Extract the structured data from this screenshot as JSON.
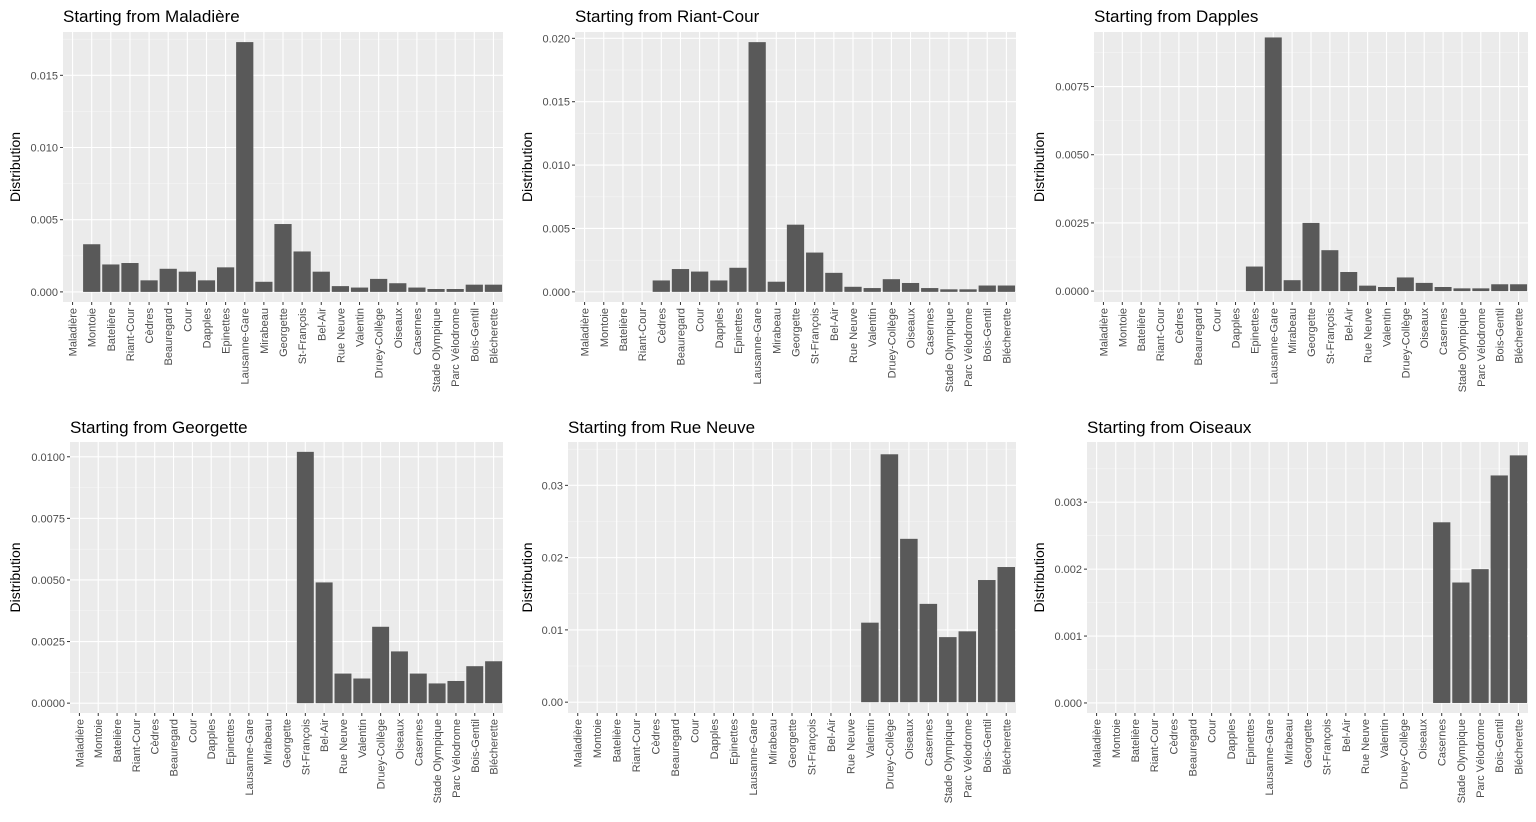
{
  "chart_data": [
    {
      "type": "bar",
      "title": "Starting from Maladière",
      "xlabel": "",
      "ylabel": "Distribution",
      "ylim": [
        -0.0007,
        0.018
      ],
      "yticks": [
        "0.000",
        "0.005",
        "0.010",
        "0.015"
      ],
      "categories": [
        "Maladière",
        "Montoie",
        "Batelière",
        "Riant-Cour",
        "Cèdres",
        "Beauregard",
        "Cour",
        "Dapples",
        "Epinettes",
        "Lausanne-Gare",
        "Mirabeau",
        "Georgette",
        "St-François",
        "Bel-Air",
        "Rue Neuve",
        "Valentin",
        "Druey-Collège",
        "Oiseaux",
        "Casernes",
        "Stade Olympique",
        "Parc Vélodrome",
        "Bois-Gentil",
        "Blécherette"
      ],
      "values": [
        0,
        0.0033,
        0.0019,
        0.002,
        0.0008,
        0.0016,
        0.0014,
        0.0008,
        0.0017,
        0.0173,
        0.0007,
        0.0047,
        0.0028,
        0.0014,
        0.0004,
        0.0003,
        0.0009,
        0.0006,
        0.0003,
        0.0002,
        0.0002,
        0.0005,
        0.0005
      ]
    },
    {
      "type": "bar",
      "title": "Starting from Riant-Cour",
      "xlabel": "",
      "ylabel": "Distribution",
      "ylim": [
        -0.0008,
        0.0205
      ],
      "yticks": [
        "0.000",
        "0.005",
        "0.010",
        "0.015",
        "0.020"
      ],
      "categories": [
        "Maladière",
        "Montoie",
        "Batelière",
        "Riant-Cour",
        "Cèdres",
        "Beauregard",
        "Cour",
        "Dapples",
        "Epinettes",
        "Lausanne-Gare",
        "Mirabeau",
        "Georgette",
        "St-François",
        "Bel-Air",
        "Rue Neuve",
        "Valentin",
        "Druey-Collège",
        "Oiseaux",
        "Casernes",
        "Stade Olympique",
        "Parc Vélodrome",
        "Bois-Gentil",
        "Blécherette"
      ],
      "values": [
        0,
        0,
        0,
        0,
        0.0009,
        0.0018,
        0.0016,
        0.0009,
        0.0019,
        0.0197,
        0.0008,
        0.0053,
        0.0031,
        0.0015,
        0.0004,
        0.0003,
        0.001,
        0.0007,
        0.0003,
        0.0002,
        0.0002,
        0.0005,
        0.0005
      ]
    },
    {
      "type": "bar",
      "title": "Starting from Dapples",
      "xlabel": "",
      "ylabel": "Distribution",
      "ylim": [
        -0.0004,
        0.0095
      ],
      "yticks": [
        "0.0000",
        "0.0025",
        "0.0050",
        "0.0075"
      ],
      "categories": [
        "Maladière",
        "Montoie",
        "Batelière",
        "Riant-Cour",
        "Cèdres",
        "Beauregard",
        "Cour",
        "Dapples",
        "Epinettes",
        "Lausanne-Gare",
        "Mirabeau",
        "Georgette",
        "St-François",
        "Bel-Air",
        "Rue Neuve",
        "Valentin",
        "Druey-Collège",
        "Oiseaux",
        "Casernes",
        "Stade Olympique",
        "Parc Vélodrome",
        "Bois-Gentil",
        "Blécherette"
      ],
      "values": [
        0,
        0,
        0,
        0,
        0,
        0,
        0,
        0,
        0.0009,
        0.0093,
        0.0004,
        0.0025,
        0.0015,
        0.0007,
        0.0002,
        0.00015,
        0.0005,
        0.0003,
        0.00015,
        0.0001,
        0.0001,
        0.00025,
        0.00025
      ]
    },
    {
      "type": "bar",
      "title": "Starting from Georgette",
      "xlabel": "",
      "ylabel": "Distribution",
      "ylim": [
        -0.0004,
        0.0106
      ],
      "yticks": [
        "0.0000",
        "0.0025",
        "0.0050",
        "0.0075",
        "0.0100"
      ],
      "categories": [
        "Maladière",
        "Montoie",
        "Batelière",
        "Riant-Cour",
        "Cèdres",
        "Beauregard",
        "Cour",
        "Dapples",
        "Epinettes",
        "Lausanne-Gare",
        "Mirabeau",
        "Georgette",
        "St-François",
        "Bel-Air",
        "Rue Neuve",
        "Valentin",
        "Druey-Collège",
        "Oiseaux",
        "Casernes",
        "Stade Olympique",
        "Parc Vélodrome",
        "Bois-Gentil",
        "Blécherette"
      ],
      "values": [
        0,
        0,
        0,
        0,
        0,
        0,
        0,
        0,
        0,
        0,
        0,
        0,
        0.0102,
        0.0049,
        0.0012,
        0.001,
        0.0031,
        0.0021,
        0.0012,
        0.0008,
        0.0009,
        0.0015,
        0.0017
      ]
    },
    {
      "type": "bar",
      "title": "Starting from Rue Neuve",
      "xlabel": "",
      "ylabel": "Distribution",
      "ylim": [
        -0.0015,
        0.036
      ],
      "yticks": [
        "0.00",
        "0.01",
        "0.02",
        "0.03"
      ],
      "categories": [
        "Maladière",
        "Montoie",
        "Batelière",
        "Riant-Cour",
        "Cèdres",
        "Beauregard",
        "Cour",
        "Dapples",
        "Epinettes",
        "Lausanne-Gare",
        "Mirabeau",
        "Georgette",
        "St-François",
        "Bel-Air",
        "Rue Neuve",
        "Valentin",
        "Druey-Collège",
        "Oiseaux",
        "Casernes",
        "Stade Olympique",
        "Parc Vélodrome",
        "Bois-Gentil",
        "Blécherette"
      ],
      "values": [
        0,
        0,
        0,
        0,
        0,
        0,
        0,
        0,
        0,
        0,
        0,
        0,
        0,
        0,
        0,
        0.011,
        0.0343,
        0.0226,
        0.0136,
        0.009,
        0.0098,
        0.0169,
        0.0187
      ]
    },
    {
      "type": "bar",
      "title": "Starting from Oiseaux",
      "xlabel": "",
      "ylabel": "Distribution",
      "ylim": [
        -0.00015,
        0.0039
      ],
      "yticks": [
        "0.000",
        "0.001",
        "0.002",
        "0.003"
      ],
      "categories": [
        "Maladière",
        "Montoie",
        "Batelière",
        "Riant-Cour",
        "Cèdres",
        "Beauregard",
        "Cour",
        "Dapples",
        "Epinettes",
        "Lausanne-Gare",
        "Mirabeau",
        "Georgette",
        "St-François",
        "Bel-Air",
        "Rue Neuve",
        "Valentin",
        "Druey-Collège",
        "Oiseaux",
        "Casernes",
        "Stade Olympique",
        "Parc Vélodrome",
        "Bois-Gentil",
        "Blécherette"
      ],
      "values": [
        0,
        0,
        0,
        0,
        0,
        0,
        0,
        0,
        0,
        0,
        0,
        0,
        0,
        0,
        0,
        0,
        0,
        0,
        0.0027,
        0.0018,
        0.002,
        0.0034,
        0.0037
      ]
    }
  ]
}
